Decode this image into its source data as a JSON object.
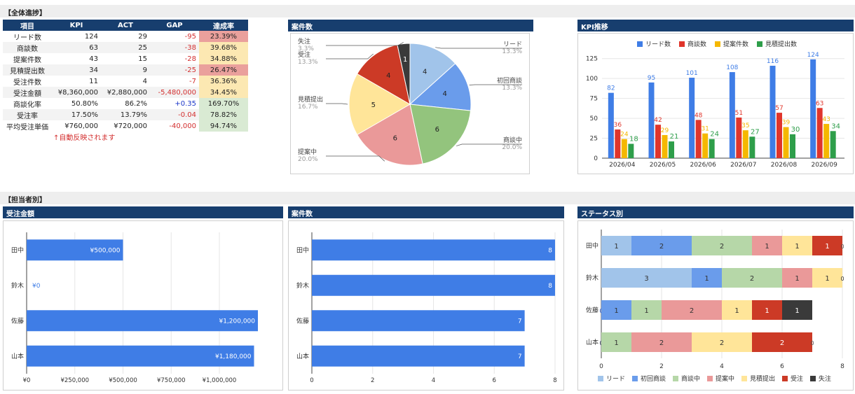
{
  "sections": {
    "overall": "【全体進捗】",
    "by_person": "【担当者別】"
  },
  "kpi_table": {
    "headers": [
      "項目",
      "KPI",
      "ACT",
      "GAP",
      "達成率"
    ],
    "rows": [
      {
        "item": "リード数",
        "kpi": "124",
        "act": "29",
        "gap": "-95",
        "rate": "23.39%",
        "gap_color": "#d32f2f",
        "rate_color": "#eaa09c"
      },
      {
        "item": "商談数",
        "kpi": "63",
        "act": "25",
        "gap": "-38",
        "rate": "39.68%",
        "gap_color": "#d32f2f",
        "rate_color": "#fce8b2"
      },
      {
        "item": "提案件数",
        "kpi": "43",
        "act": "15",
        "gap": "-28",
        "rate": "34.88%",
        "gap_color": "#d32f2f",
        "rate_color": "#fce8b2"
      },
      {
        "item": "見積提出数",
        "kpi": "34",
        "act": "9",
        "gap": "-25",
        "rate": "26.47%",
        "gap_color": "#d32f2f",
        "rate_color": "#eaa09c"
      },
      {
        "item": "受注件数",
        "kpi": "11",
        "act": "4",
        "gap": "-7",
        "rate": "36.36%",
        "gap_color": "#d32f2f",
        "rate_color": "#fce8b2"
      },
      {
        "item": "受注金額",
        "kpi": "¥8,360,000",
        "act": "¥2,880,000",
        "gap": "-5,480,000",
        "rate": "34.45%",
        "gap_color": "#d32f2f",
        "rate_color": "#fce8b2"
      },
      {
        "item": "商談化率",
        "kpi": "50.80%",
        "act": "86.2%",
        "gap": "+0.35",
        "rate": "169.70%",
        "gap_color": "#1a35c8",
        "rate_color": "#d9ead3"
      },
      {
        "item": "受注率",
        "kpi": "17.50%",
        "act": "13.79%",
        "gap": "-0.04",
        "rate": "78.82%",
        "gap_color": "#d32f2f",
        "rate_color": "#d9ead3"
      },
      {
        "item": "平均受注単価",
        "kpi": "¥760,000",
        "act": "¥720,000",
        "gap": "-40,000",
        "rate": "94.74%",
        "gap_color": "#d32f2f",
        "rate_color": "#d9ead3"
      }
    ],
    "note": "↑自動反映されます"
  },
  "titles": {
    "pie": "案件数",
    "kpi_trend": "KPI推移",
    "order_amount": "受注金額",
    "case_count": "案件数",
    "status": "ステータス別"
  },
  "chart_data": [
    {
      "id": "pie",
      "type": "pie",
      "labels": [
        "リード",
        "初回商談",
        "商談中",
        "提案中",
        "見積提出",
        "受注",
        "失注"
      ],
      "values": [
        4,
        4,
        6,
        6,
        5,
        4,
        1
      ],
      "percents": [
        "13.3%",
        "13.3%",
        "20.0%",
        "20.0%",
        "16.7%",
        "13.3%",
        "3.3%"
      ],
      "colors": [
        "#a1c4ea",
        "#6a9ceb",
        "#93c47d",
        "#ea9999",
        "#ffe599",
        "#cc3a26",
        "#3a3a3a"
      ]
    },
    {
      "id": "kpi_trend",
      "type": "bar",
      "categories": [
        "2026/04",
        "2026/05",
        "2026/06",
        "2026/07",
        "2026/08",
        "2026/09"
      ],
      "series": [
        {
          "name": "リード数",
          "values": [
            82,
            95,
            101,
            108,
            116,
            124
          ],
          "color": "#3f7de6"
        },
        {
          "name": "商談数",
          "values": [
            36,
            42,
            48,
            51,
            57,
            63
          ],
          "color": "#e0352b"
        },
        {
          "name": "提案件数",
          "values": [
            24,
            29,
            31,
            35,
            39,
            43
          ],
          "color": "#f5b800"
        },
        {
          "name": "見積提出数",
          "values": [
            18,
            21,
            24,
            27,
            30,
            34
          ],
          "color": "#2e9e4a"
        }
      ],
      "ylim": [
        0,
        130
      ],
      "yticks": [
        0,
        25,
        50,
        75,
        100,
        125
      ],
      "legend": "top"
    },
    {
      "id": "order_amount",
      "type": "bar",
      "orientation": "horizontal",
      "categories": [
        "田中",
        "鈴木",
        "佐藤",
        "山本"
      ],
      "values": [
        500000,
        0,
        1200000,
        1180000
      ],
      "value_labels": [
        "¥500,000",
        "¥0",
        "¥1,200,000",
        "¥1,180,000"
      ],
      "xlim": [
        0,
        1200000
      ],
      "xticks": [
        0,
        250000,
        500000,
        750000,
        1000000
      ],
      "xtick_labels": [
        "¥0",
        "¥250,000",
        "¥500,000",
        "¥750,000",
        "¥1,000,000"
      ],
      "color": "#3f7de6"
    },
    {
      "id": "case_count",
      "type": "bar",
      "orientation": "horizontal",
      "categories": [
        "田中",
        "鈴木",
        "佐藤",
        "山本"
      ],
      "values": [
        8,
        8,
        7,
        7
      ],
      "xlim": [
        0,
        8
      ],
      "xticks": [
        0,
        2,
        4,
        6,
        8
      ],
      "color": "#3f7de6"
    },
    {
      "id": "status",
      "type": "bar",
      "orientation": "horizontal",
      "stacked": true,
      "categories": [
        "田中",
        "鈴木",
        "佐藤",
        "山本"
      ],
      "series": [
        {
          "name": "リード",
          "values": [
            1,
            3,
            0,
            0
          ],
          "color": "#a1c4ea"
        },
        {
          "name": "初回商談",
          "values": [
            2,
            1,
            1,
            0
          ],
          "color": "#6a9ceb"
        },
        {
          "name": "商談中",
          "values": [
            2,
            2,
            1,
            1
          ],
          "color": "#b6d7a8"
        },
        {
          "name": "提案中",
          "values": [
            1,
            1,
            2,
            2
          ],
          "color": "#ea9999"
        },
        {
          "name": "見積提出",
          "values": [
            1,
            1,
            1,
            2
          ],
          "color": "#ffe599"
        },
        {
          "name": "受注",
          "values": [
            1,
            0,
            1,
            2
          ],
          "color": "#cc3a26"
        },
        {
          "name": "失注",
          "values": [
            0,
            0,
            1,
            0
          ],
          "color": "#3a3a3a"
        }
      ],
      "xlim": [
        0,
        8
      ],
      "xticks": [
        0,
        2,
        4,
        6,
        8
      ],
      "legend": "bottom"
    }
  ]
}
